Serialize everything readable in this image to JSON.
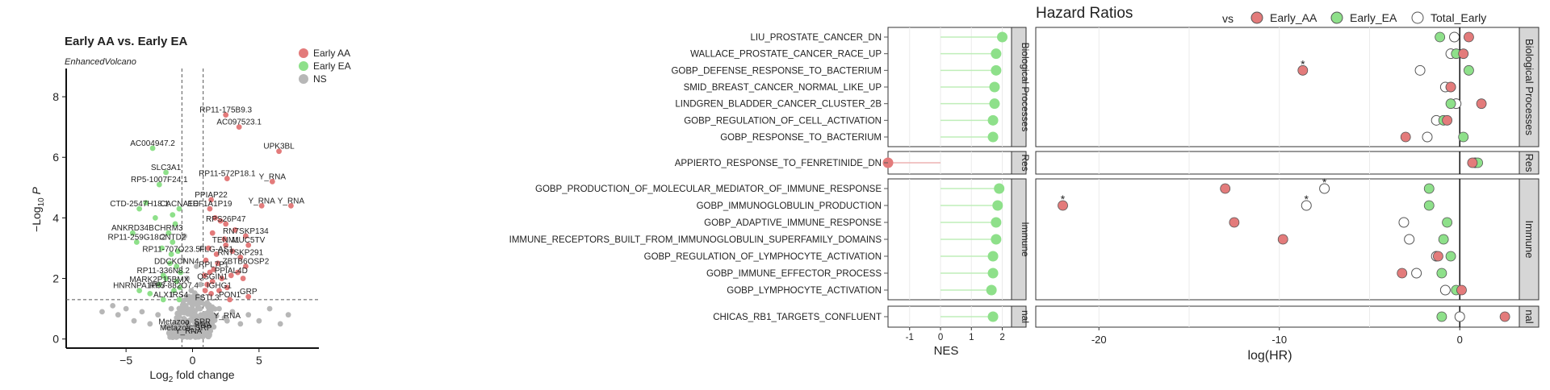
{
  "colors": {
    "aa": "#e37b7b",
    "ea": "#8ee08a",
    "ns": "#b7b7b7",
    "strip": "#d6d6d6",
    "grid": "#ebebeb"
  },
  "volcano": {
    "title": "Early AA vs. Early EA",
    "subtitle": "EnhancedVolcano",
    "xlabel_main": "Log",
    "xlabel_sub": "2",
    "xlabel_rest": " fold change",
    "ylabel_a": "−Log",
    "ylabel_sub": "10",
    "ylabel_b": " P",
    "legend": [
      {
        "label": "Early AA",
        "color": "#e37b7b"
      },
      {
        "label": "Early EA",
        "color": "#8ee08a"
      },
      {
        "label": "NS",
        "color": "#b7b7b7"
      }
    ]
  },
  "hr": {
    "title": "Hazard Ratios",
    "legend_prefix": "vs",
    "legend": [
      {
        "label": "Early_AA",
        "color": "#e37b7b"
      },
      {
        "label": "Early_EA",
        "color": "#8ee08a"
      },
      {
        "label": "Total_Early",
        "color": "#ffffff"
      }
    ],
    "nes_label": "NES",
    "hr_label": "log(HR)",
    "facets": [
      "Biological Processes",
      "Res",
      "Immune",
      "nal"
    ]
  },
  "chart_data": [
    {
      "type": "scatter",
      "title": "Early AA vs. Early EA",
      "subtitle": "EnhancedVolcano",
      "xlabel": "Log2 fold change",
      "ylabel": "−Log10 P",
      "xlim": [
        -9.5,
        9.5
      ],
      "ylim": [
        -0.3,
        8.8
      ],
      "xticks": [
        -5,
        0,
        5
      ],
      "yticks": [
        0,
        2,
        4,
        6,
        8
      ],
      "vlines": [
        -0.8,
        0.8
      ],
      "hline": 1.3,
      "series": [
        {
          "name": "Early AA",
          "points": [
            {
              "x": 2.5,
              "y": 7.4,
              "label": "RP11-175B9.3"
            },
            {
              "x": 3.5,
              "y": 7.0,
              "label": "AC097523.1"
            },
            {
              "x": 6.5,
              "y": 6.2,
              "label": "UPK3BL"
            },
            {
              "x": 2.6,
              "y": 5.3,
              "label": "RP11-572P18.1"
            },
            {
              "x": 6.0,
              "y": 5.2,
              "label": "Y_RNA"
            },
            {
              "x": 1.4,
              "y": 4.6,
              "label": "PPIAP22"
            },
            {
              "x": 5.2,
              "y": 4.4,
              "label": "Y_RNA"
            },
            {
              "x": 7.4,
              "y": 4.4,
              "label": "Y_RNA"
            },
            {
              "x": 1.3,
              "y": 4.3,
              "label": "EEF1A1P19"
            },
            {
              "x": 2.5,
              "y": 3.8,
              "label": "RPS26P47"
            },
            {
              "x": 4.0,
              "y": 3.4,
              "label": "RN7SKP134"
            },
            {
              "x": 2.5,
              "y": 3.1,
              "label": "TENM1"
            },
            {
              "x": 4.2,
              "y": 3.1,
              "label": "MUC5TV"
            },
            {
              "x": 3.6,
              "y": 2.7,
              "label": "RN7SKP291"
            },
            {
              "x": 1.8,
              "y": 2.8,
              "label": "FLG-AS1"
            },
            {
              "x": 4.0,
              "y": 2.4,
              "label": "ZBTB6OSP2"
            },
            {
              "x": 1.6,
              "y": 2.3,
              "label": "RPL7P1"
            },
            {
              "x": 2.9,
              "y": 2.1,
              "label": "PPIAL4D"
            },
            {
              "x": 1.5,
              "y": 1.9,
              "label": "QSGIN1"
            },
            {
              "x": 2.0,
              "y": 1.6,
              "label": "IGHG1"
            },
            {
              "x": 2.8,
              "y": 1.3,
              "label": "PON1"
            },
            {
              "x": 4.2,
              "y": 1.4,
              "label": "GRP"
            },
            {
              "x": 1.0,
              "y": 2.6
            },
            {
              "x": 1.2,
              "y": 3.0
            },
            {
              "x": 1.5,
              "y": 3.5
            },
            {
              "x": 1.9,
              "y": 2.5
            },
            {
              "x": 2.2,
              "y": 2.0
            },
            {
              "x": 2.4,
              "y": 3.3
            },
            {
              "x": 3.0,
              "y": 2.9
            },
            {
              "x": 3.2,
              "y": 3.6
            },
            {
              "x": 1.1,
              "y": 1.8
            },
            {
              "x": 1.4,
              "y": 1.5
            },
            {
              "x": 2.6,
              "y": 1.7
            },
            {
              "x": 3.4,
              "y": 2.2
            },
            {
              "x": 0.9,
              "y": 2.1
            },
            {
              "x": 1.7,
              "y": 4.0
            },
            {
              "x": 2.1,
              "y": 3.9
            },
            {
              "x": 3.8,
              "y": 2.0
            },
            {
              "x": 1.3,
              "y": 2.2
            },
            {
              "x": 0.95,
              "y": 1.6
            }
          ]
        },
        {
          "name": "Early EA",
          "points": [
            {
              "x": -3.0,
              "y": 6.3,
              "label": "AC004947.2"
            },
            {
              "x": -2.0,
              "y": 5.5,
              "label": "SLC3A1"
            },
            {
              "x": -2.5,
              "y": 5.1,
              "label": "RP5-1007F24.1"
            },
            {
              "x": -4.0,
              "y": 4.3,
              "label": "CTD-2547H18.1"
            },
            {
              "x": -1.0,
              "y": 4.3,
              "label": "CACNA1D"
            },
            {
              "x": -4.5,
              "y": 3.5,
              "label": "ANKRD34B"
            },
            {
              "x": -1.8,
              "y": 3.5,
              "label": "CHRM3"
            },
            {
              "x": -4.2,
              "y": 3.2,
              "label": "RP11-259G18.2"
            },
            {
              "x": -1.5,
              "y": 3.2,
              "label": "CNTD2"
            },
            {
              "x": -1.6,
              "y": 2.8,
              "label": "RP11-707O23.5"
            },
            {
              "x": -1.2,
              "y": 2.4,
              "label": "DDCKCNN4"
            },
            {
              "x": -2.2,
              "y": 2.1,
              "label": "RP11-336N8.2"
            },
            {
              "x": -2.5,
              "y": 1.8,
              "label": "MARK2P15BMX"
            },
            {
              "x": -4.0,
              "y": 1.6,
              "label": "HNRNPA1P57"
            },
            {
              "x": -1.4,
              "y": 1.6,
              "label": "RP5-882O7.4"
            },
            {
              "x": -2.2,
              "y": 1.3,
              "label": "ALX1"
            },
            {
              "x": -1.0,
              "y": 1.3,
              "label": "IRS4"
            },
            {
              "x": -3.5,
              "y": 4.5
            },
            {
              "x": -2.8,
              "y": 4.0
            },
            {
              "x": -1.3,
              "y": 3.8
            },
            {
              "x": -1.1,
              "y": 2.9
            },
            {
              "x": -0.9,
              "y": 2.2
            },
            {
              "x": -1.7,
              "y": 2.5
            },
            {
              "x": -2.0,
              "y": 2.0
            },
            {
              "x": -1.2,
              "y": 1.9
            },
            {
              "x": -0.95,
              "y": 1.7
            },
            {
              "x": -3.2,
              "y": 1.5
            },
            {
              "x": -1.5,
              "y": 4.1
            },
            {
              "x": -2.3,
              "y": 3.0
            }
          ]
        },
        {
          "name": "NS",
          "points": [
            {
              "x": -0.6,
              "y": 0.4,
              "label": "Metazoa_SRP"
            },
            {
              "x": -0.5,
              "y": 0.2,
              "label": "Metazoa_SRP"
            },
            {
              "x": 0.4,
              "y": 0.3,
              "label": "Y_RNA"
            },
            {
              "x": 2.6,
              "y": 0.6,
              "label": "Y_RNA"
            },
            {
              "x": -0.3,
              "y": 0.1,
              "label": "Y_RNA"
            },
            {
              "x": 1.1,
              "y": 1.2,
              "label": "FSTL3"
            },
            {
              "x": -6.0,
              "y": 1.1
            },
            {
              "x": -5.6,
              "y": 0.8
            },
            {
              "x": -5.0,
              "y": 1.0
            },
            {
              "x": -4.4,
              "y": 0.6
            },
            {
              "x": -3.8,
              "y": 0.9
            },
            {
              "x": -3.2,
              "y": 0.5
            },
            {
              "x": -2.6,
              "y": 0.8
            },
            {
              "x": -2.0,
              "y": 0.4
            },
            {
              "x": -1.6,
              "y": 1.0
            },
            {
              "x": -1.2,
              "y": 0.7
            },
            {
              "x": -0.8,
              "y": 0.9
            },
            {
              "x": -0.5,
              "y": 1.1
            },
            {
              "x": -0.2,
              "y": 0.6
            },
            {
              "x": 0.0,
              "y": 1.2
            },
            {
              "x": 0.2,
              "y": 0.8
            },
            {
              "x": 0.5,
              "y": 1.0
            },
            {
              "x": 0.8,
              "y": 0.5
            },
            {
              "x": 1.2,
              "y": 0.9
            },
            {
              "x": 1.6,
              "y": 0.4
            },
            {
              "x": 2.0,
              "y": 1.0
            },
            {
              "x": 2.4,
              "y": 0.7
            },
            {
              "x": 3.0,
              "y": 0.9
            },
            {
              "x": 3.6,
              "y": 0.5
            },
            {
              "x": 4.2,
              "y": 0.8
            },
            {
              "x": 5.0,
              "y": 0.6
            },
            {
              "x": 5.8,
              "y": 1.0
            },
            {
              "x": 6.6,
              "y": 0.5
            },
            {
              "x": -0.7,
              "y": 2.6
            },
            {
              "x": -0.4,
              "y": 2.0
            },
            {
              "x": 0.3,
              "y": 2.4
            },
            {
              "x": 0.6,
              "y": 1.8
            },
            {
              "x": -0.1,
              "y": 1.6
            },
            {
              "x": 0.7,
              "y": 3.0
            },
            {
              "x": -0.6,
              "y": 3.4
            },
            {
              "x": 0.1,
              "y": 0.2
            },
            {
              "x": -1.0,
              "y": 0.3
            },
            {
              "x": 1.0,
              "y": 0.2
            },
            {
              "x": -6.8,
              "y": 0.9
            },
            {
              "x": 7.2,
              "y": 0.8
            }
          ]
        }
      ]
    },
    {
      "type": "lollipop",
      "xlabel": "NES",
      "xlim": [
        -1.7,
        2.3
      ],
      "xticks": [
        -1,
        0,
        1,
        2
      ],
      "facets": [
        {
          "name": "Biological Processes",
          "rows": [
            {
              "label": "LIU_PROSTATE_CANCER_DN",
              "nes": 2.0
            },
            {
              "label": "WALLACE_PROSTATE_CANCER_RACE_UP",
              "nes": 1.8
            },
            {
              "label": "GOBP_DEFENSE_RESPONSE_TO_BACTERIUM",
              "nes": 1.8
            },
            {
              "label": "SMID_BREAST_CANCER_NORMAL_LIKE_UP",
              "nes": 1.75
            },
            {
              "label": "LINDGREN_BLADDER_CANCER_CLUSTER_2B",
              "nes": 1.75
            },
            {
              "label": "GOBP_REGULATION_OF_CELL_ACTIVATION",
              "nes": 1.7
            },
            {
              "label": "GOBP_RESPONSE_TO_BACTERIUM",
              "nes": 1.7
            }
          ]
        },
        {
          "name": "Res",
          "rows": [
            {
              "label": "APPIERTO_RESPONSE_TO_FENRETINIDE_DN",
              "nes": -1.7
            }
          ]
        },
        {
          "name": "Immune",
          "rows": [
            {
              "label": "GOBP_PRODUCTION_OF_MOLECULAR_MEDIATOR_OF_IMMUNE_RESPONSE",
              "nes": 1.9
            },
            {
              "label": "GOBP_IMMUNOGLOBULIN_PRODUCTION",
              "nes": 1.85
            },
            {
              "label": "GOBP_ADAPTIVE_IMMUNE_RESPONSE",
              "nes": 1.8
            },
            {
              "label": "IMMUNE_RECEPTORS_BUILT_FROM_IMMUNOGLOBULIN_SUPERFAMILY_DOMAINS",
              "nes": 1.8
            },
            {
              "label": "GOBP_REGULATION_OF_LYMPHOCYTE_ACTIVATION",
              "nes": 1.7
            },
            {
              "label": "GOBP_IMMUNE_EFFECTOR_PROCESS",
              "nes": 1.7
            },
            {
              "label": "GOBP_LYMPHOCYTE_ACTIVATION",
              "nes": 1.65
            }
          ]
        },
        {
          "name": "nal",
          "rows": [
            {
              "label": "CHICAS_RB1_TARGETS_CONFLUENT",
              "nes": 1.7
            }
          ]
        }
      ]
    },
    {
      "type": "scatter",
      "title": "Hazard Ratios",
      "xlabel": "log(HR)",
      "xlim": [
        -23.5,
        3.3
      ],
      "xticks": [
        -20,
        -10,
        0
      ],
      "series_names": [
        "Early_AA",
        "Early_EA",
        "Total_Early"
      ],
      "rows": [
        {
          "label": "LIU_PROSTATE_CANCER_DN",
          "aa": 0.5,
          "ea": -1.1,
          "total": -0.3
        },
        {
          "label": "WALLACE_PROSTATE_CANCER_RACE_UP",
          "aa": 0.2,
          "ea": -0.2,
          "total": -0.5
        },
        {
          "label": "GOBP_DEFENSE_RESPONSE_TO_BACTERIUM",
          "aa": -8.7,
          "ea": 0.5,
          "total": -2.2,
          "star": "aa"
        },
        {
          "label": "SMID_BREAST_CANCER_NORMAL_LIKE_UP",
          "aa": -0.5,
          "ea": -0.5,
          "total": -0.8
        },
        {
          "label": "LINDGREN_BLADDER_CANCER_CLUSTER_2B",
          "aa": 1.2,
          "ea": -0.5,
          "total": -0.2
        },
        {
          "label": "GOBP_REGULATION_OF_CELL_ACTIVATION",
          "aa": -0.7,
          "ea": -0.9,
          "total": -1.3
        },
        {
          "label": "GOBP_RESPONSE_TO_BACTERIUM",
          "aa": -3.0,
          "ea": 0.2,
          "total": -1.8
        },
        {
          "label": "APPIERTO_RESPONSE_TO_FENRETINIDE_DN",
          "aa": 0.7,
          "ea": 1.0,
          "total": 0.85
        },
        {
          "label": "GOBP_PRODUCTION_OF_MOLECULAR_MEDIATOR_OF_IMMUNE_RESPONSE",
          "aa": -13.0,
          "ea": -1.7,
          "total": -7.5,
          "star": "total"
        },
        {
          "label": "GOBP_IMMUNOGLOBULIN_PRODUCTION",
          "aa": -22.0,
          "ea": -1.7,
          "total": -8.5,
          "star": "aa_total"
        },
        {
          "label": "GOBP_ADAPTIVE_IMMUNE_RESPONSE",
          "aa": -12.5,
          "ea": -0.7,
          "total": -3.1
        },
        {
          "label": "IMMUNE_RECEPTORS_BUILT_FROM_IMMUNOGLOBULIN_SUPERFAMILY_DOMAINS",
          "aa": -9.8,
          "ea": -0.9,
          "total": -2.8
        },
        {
          "label": "GOBP_REGULATION_OF_LYMPHOCYTE_ACTIVATION",
          "aa": -1.2,
          "ea": -0.5,
          "total": -1.3
        },
        {
          "label": "GOBP_IMMUNE_EFFECTOR_PROCESS",
          "aa": -3.2,
          "ea": -1.0,
          "total": -2.4
        },
        {
          "label": "GOBP_LYMPHOCYTE_ACTIVATION",
          "aa": 0.1,
          "ea": -0.2,
          "total": -0.8
        },
        {
          "label": "CHICAS_RB1_TARGETS_CONFLUENT",
          "aa": 2.5,
          "ea": -1.0,
          "total": 0.0
        }
      ]
    }
  ]
}
